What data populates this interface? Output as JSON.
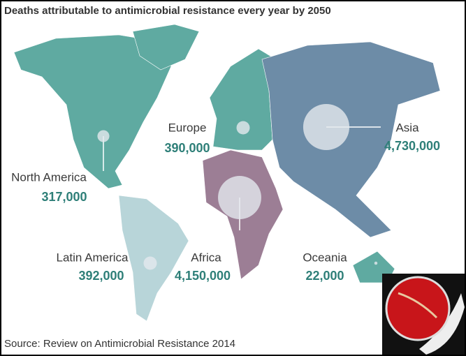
{
  "chart_data": {
    "type": "bubble-map",
    "title": "Deaths attributable to antimicrobial resistance every year by 2050",
    "categories": [
      "North America",
      "Europe",
      "Asia",
      "Africa",
      "Latin America",
      "Oceania"
    ],
    "values": [
      317000,
      390000,
      4730000,
      4150000,
      392000,
      22000
    ],
    "value_labels": [
      "317,000",
      "390,000",
      "4,730,000",
      "4,150,000",
      "392,000",
      "22,000"
    ],
    "color": "#e4e8ee",
    "source": "Source: Review on Antimicrobial Resistance 2014"
  }
}
